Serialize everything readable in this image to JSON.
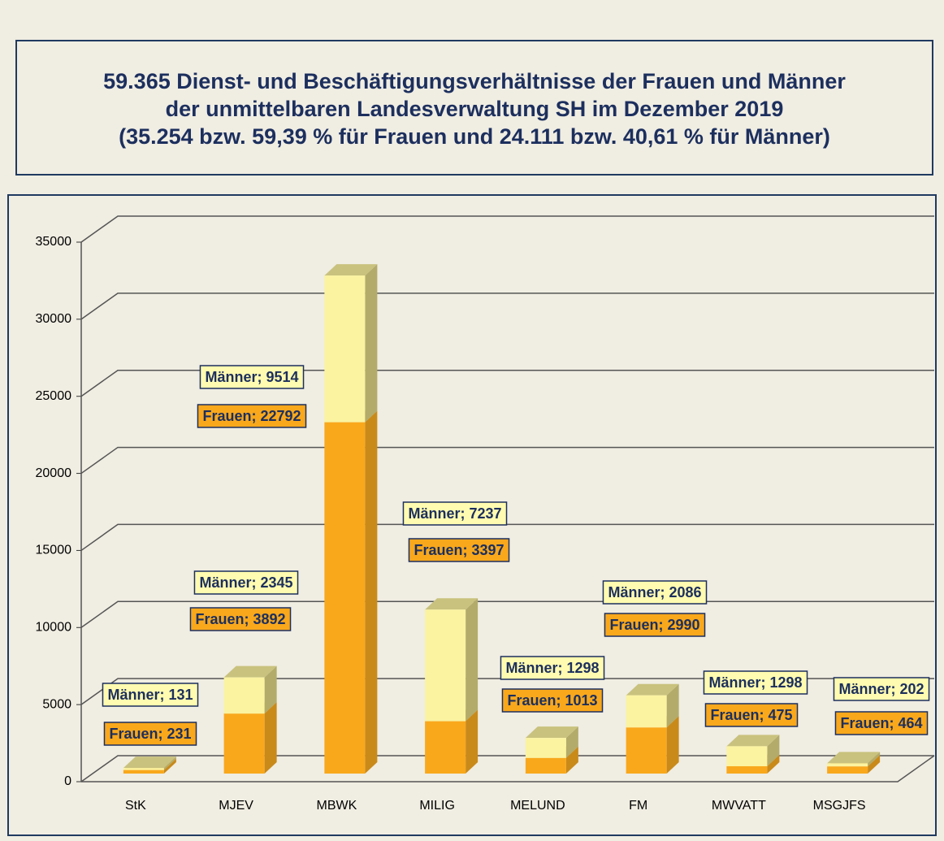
{
  "chart_data": {
    "type": "bar3d_stacked",
    "title": [
      "59.365 Dienst- und Beschäftigungsverhältnisse  der Frauen und Männer",
      "der unmittelbaren Landesverwaltung SH im Dezember 2019",
      "(35.254 bzw. 59,39 % für Frauen und 24.111 bzw. 40,61 % für Männer)"
    ],
    "categories": [
      "StK",
      "MJEV",
      "MBWK",
      "MILIG",
      "MELUND",
      "FM",
      "MWVATT",
      "MSGJFS"
    ],
    "series": [
      {
        "name": "Frauen",
        "color": "#f9a81c",
        "values": [
          231,
          3892,
          22792,
          3397,
          1013,
          2990,
          475,
          464
        ],
        "value_labels": [
          "Frauen; 231",
          "Frauen; 3892",
          "Frauen; 22792",
          "Frauen; 3397",
          "Frauen; 1013",
          "Frauen; 2990",
          "Frauen; 475",
          "Frauen; 464"
        ]
      },
      {
        "name": "Männer",
        "color": "#fbf3a0",
        "values": [
          131,
          2345,
          9514,
          7237,
          1298,
          2086,
          1298,
          202
        ],
        "value_labels": [
          "Männer; 131",
          "Männer; 2345",
          "Männer; 9514",
          "Männer; 7237",
          "Männer; 1298",
          "Männer; 2086",
          "Männer; 1298",
          "Männer; 202"
        ]
      }
    ],
    "ylim": [
      0,
      35000
    ],
    "yticks": [
      0,
      5000,
      10000,
      15000,
      20000,
      25000,
      30000,
      35000
    ],
    "grid": true
  }
}
